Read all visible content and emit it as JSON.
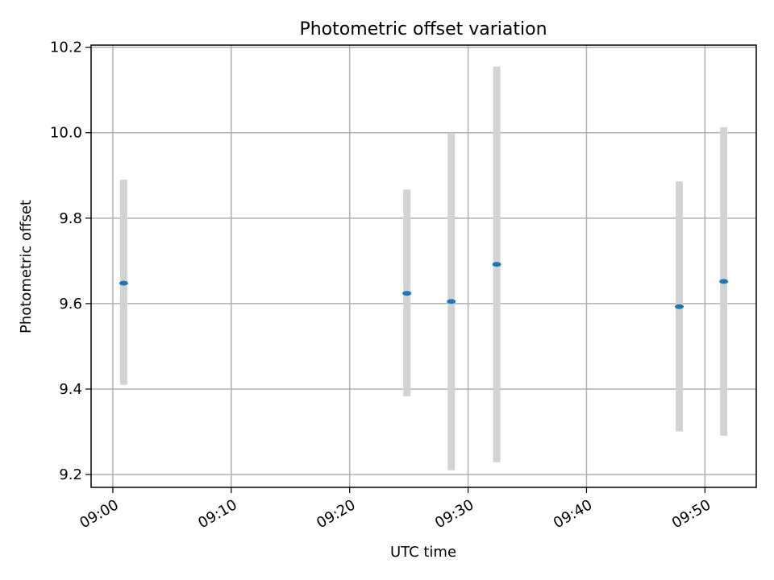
{
  "chart_data": {
    "type": "scatter",
    "title": "Photometric offset variation",
    "xlabel": "UTC time",
    "ylabel": "Photometric offset",
    "x_ticks": [
      "09:00",
      "09:10",
      "09:20",
      "09:30",
      "09:40",
      "09:50"
    ],
    "y_ticks": [
      "9.2",
      "9.4",
      "9.6",
      "9.8",
      "10.0",
      "10.2"
    ],
    "xlim": [
      "08:58:10",
      "09:54:20"
    ],
    "ylim": [
      9.17,
      10.205
    ],
    "grid": true,
    "points": [
      {
        "x": "09:00:55",
        "y": 9.648,
        "low": 9.41,
        "high": 9.89
      },
      {
        "x": "09:24:50",
        "y": 9.624,
        "low": 9.383,
        "high": 9.867
      },
      {
        "x": "09:28:35",
        "y": 9.605,
        "low": 9.21,
        "high": 10.0
      },
      {
        "x": "09:32:25",
        "y": 9.692,
        "low": 9.229,
        "high": 10.155
      },
      {
        "x": "09:47:50",
        "y": 9.593,
        "low": 9.301,
        "high": 9.886
      },
      {
        "x": "09:51:35",
        "y": 9.652,
        "low": 9.291,
        "high": 10.013
      }
    ],
    "colors": {
      "point": "#1f77b4",
      "errorbar": "#d3d3d3"
    }
  }
}
